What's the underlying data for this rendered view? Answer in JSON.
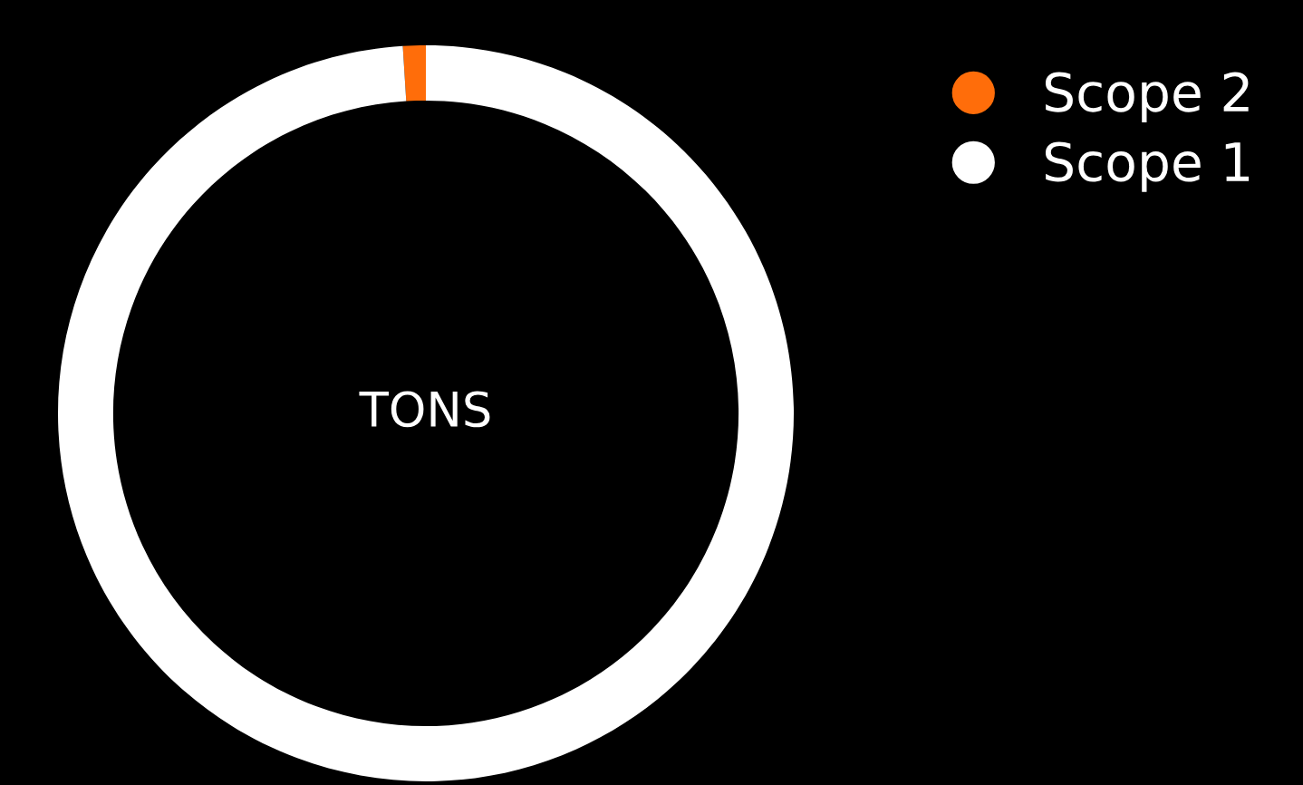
{
  "chart_data": {
    "type": "donut",
    "categories": [
      "Scope 2",
      "Scope 1"
    ],
    "values": [
      1,
      99
    ],
    "colors": [
      "#ff6d0a",
      "#ffffff"
    ],
    "annotations": [
      "TONS"
    ],
    "legend": "top right"
  }
}
